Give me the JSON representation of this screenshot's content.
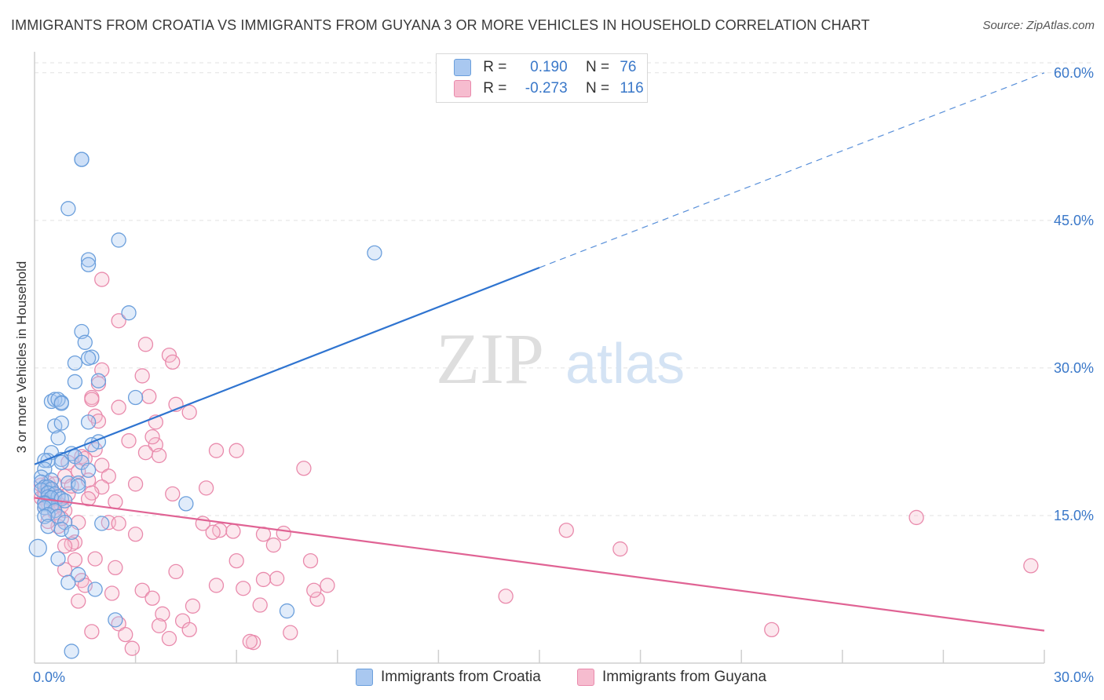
{
  "title": "IMMIGRANTS FROM CROATIA VS IMMIGRANTS FROM GUYANA 3 OR MORE VEHICLES IN HOUSEHOLD CORRELATION CHART",
  "source": "Source: ZipAtlas.com",
  "watermark": {
    "zip": "ZIP",
    "atlas": "atlas"
  },
  "legend": {
    "r_label": "R =",
    "n_label": "N =",
    "croatia": {
      "r": "0.190",
      "n": "76"
    },
    "guyana": {
      "r": "-0.273",
      "n": "116"
    }
  },
  "colors": {
    "croatia_fill": "#a9c8f0",
    "croatia_stroke": "#6b9fdc",
    "croatia_line": "#2f74d0",
    "guyana_fill": "#f6bccf",
    "guyana_stroke": "#e98aac",
    "guyana_line": "#e06394",
    "tick": "#3a78c9"
  },
  "chart_data": {
    "type": "scatter",
    "title": "IMMIGRANTS FROM CROATIA VS IMMIGRANTS FROM GUYANA 3 OR MORE VEHICLES IN HOUSEHOLD CORRELATION CHART",
    "xlabel": "",
    "ylabel": "3 or more Vehicles in Household",
    "xlim": [
      0,
      30
    ],
    "ylim": [
      0,
      61.5
    ],
    "x_tick_labels": [
      "0.0%",
      "30.0%"
    ],
    "y_ticks": [
      15,
      30,
      45,
      60
    ],
    "y_tick_labels": [
      "15.0%",
      "30.0%",
      "45.0%",
      "60.0%"
    ],
    "grid": true,
    "series": [
      {
        "name": "Immigrants from Croatia",
        "trend": {
          "x": [
            0,
            15
          ],
          "y": [
            20.2,
            40.2
          ],
          "dashed_to": [
            30,
            60.0
          ]
        },
        "points": [
          [
            1.4,
            51.2
          ],
          [
            1.4,
            51.2
          ],
          [
            1.0,
            46.2
          ],
          [
            2.5,
            43.0
          ],
          [
            1.6,
            41.0
          ],
          [
            1.6,
            40.5
          ],
          [
            2.8,
            35.6
          ],
          [
            1.4,
            33.7
          ],
          [
            1.5,
            32.6
          ],
          [
            1.7,
            31.1
          ],
          [
            1.6,
            31.0
          ],
          [
            1.2,
            30.5
          ],
          [
            1.9,
            28.7
          ],
          [
            1.2,
            28.6
          ],
          [
            3.0,
            27.0
          ],
          [
            0.5,
            26.6
          ],
          [
            0.8,
            26.5
          ],
          [
            0.6,
            26.8
          ],
          [
            0.7,
            26.8
          ],
          [
            0.8,
            26.4
          ],
          [
            1.6,
            24.5
          ],
          [
            0.6,
            24.1
          ],
          [
            0.8,
            24.4
          ],
          [
            0.7,
            22.9
          ],
          [
            1.9,
            22.5
          ],
          [
            1.7,
            22.2
          ],
          [
            1.1,
            21.3
          ],
          [
            0.5,
            21.4
          ],
          [
            1.2,
            21.0
          ],
          [
            0.8,
            20.7
          ],
          [
            1.4,
            20.4
          ],
          [
            0.8,
            20.4
          ],
          [
            0.4,
            20.6
          ],
          [
            0.3,
            20.6
          ],
          [
            0.3,
            19.7
          ],
          [
            1.6,
            19.6
          ],
          [
            0.2,
            18.9
          ],
          [
            0.5,
            18.6
          ],
          [
            0.2,
            18.4
          ],
          [
            1.0,
            18.3
          ],
          [
            1.3,
            18.3
          ],
          [
            1.3,
            18.0
          ],
          [
            0.3,
            17.9
          ],
          [
            0.4,
            17.9
          ],
          [
            0.5,
            17.7
          ],
          [
            0.2,
            17.6
          ],
          [
            0.4,
            17.3
          ],
          [
            0.6,
            17.2
          ],
          [
            0.4,
            16.9
          ],
          [
            0.7,
            16.9
          ],
          [
            0.5,
            16.8
          ],
          [
            0.8,
            16.7
          ],
          [
            0.9,
            16.5
          ],
          [
            0.3,
            16.3
          ],
          [
            0.3,
            16.2
          ],
          [
            0.5,
            16.0
          ],
          [
            0.3,
            15.8
          ],
          [
            0.6,
            15.5
          ],
          [
            0.4,
            15.1
          ],
          [
            0.3,
            14.9
          ],
          [
            0.7,
            14.9
          ],
          [
            0.9,
            14.3
          ],
          [
            0.4,
            13.9
          ],
          [
            2.0,
            14.2
          ],
          [
            0.8,
            13.6
          ],
          [
            1.1,
            13.3
          ],
          [
            4.5,
            16.2
          ],
          [
            0.1,
            11.7
          ],
          [
            0.7,
            10.6
          ],
          [
            1.3,
            9.0
          ],
          [
            1.0,
            8.2
          ],
          [
            1.8,
            7.5
          ],
          [
            2.4,
            4.4
          ],
          [
            7.5,
            5.3
          ],
          [
            1.1,
            1.2
          ],
          [
            10.1,
            41.7
          ]
        ]
      },
      {
        "name": "Immigrants from Guyana",
        "trend": {
          "x": [
            0,
            30
          ],
          "y": [
            16.8,
            3.3
          ]
        },
        "points": [
          [
            2.0,
            39.0
          ],
          [
            2.5,
            34.8
          ],
          [
            3.3,
            32.4
          ],
          [
            4.0,
            31.3
          ],
          [
            4.1,
            30.6
          ],
          [
            2.0,
            29.8
          ],
          [
            3.2,
            29.2
          ],
          [
            1.9,
            28.4
          ],
          [
            3.4,
            27.1
          ],
          [
            1.7,
            27.0
          ],
          [
            4.2,
            26.3
          ],
          [
            2.5,
            26.0
          ],
          [
            4.6,
            25.5
          ],
          [
            1.8,
            25.1
          ],
          [
            1.9,
            24.6
          ],
          [
            3.6,
            24.5
          ],
          [
            2.8,
            22.6
          ],
          [
            3.6,
            22.2
          ],
          [
            1.8,
            21.7
          ],
          [
            3.3,
            21.4
          ],
          [
            5.4,
            21.6
          ],
          [
            6.0,
            21.6
          ],
          [
            1.4,
            21.0
          ],
          [
            3.7,
            21.1
          ],
          [
            1.0,
            20.4
          ],
          [
            2.0,
            20.1
          ],
          [
            8.0,
            19.8
          ],
          [
            1.3,
            19.5
          ],
          [
            2.2,
            19.0
          ],
          [
            0.9,
            19.0
          ],
          [
            1.6,
            18.6
          ],
          [
            0.4,
            18.3
          ],
          [
            0.6,
            18.2
          ],
          [
            3.0,
            18.2
          ],
          [
            0.2,
            18.1
          ],
          [
            2.0,
            17.9
          ],
          [
            5.1,
            17.8
          ],
          [
            0.5,
            17.7
          ],
          [
            0.3,
            17.4
          ],
          [
            1.7,
            17.3
          ],
          [
            1.0,
            17.2
          ],
          [
            4.1,
            17.2
          ],
          [
            0.7,
            17.0
          ],
          [
            0.2,
            16.8
          ],
          [
            0.5,
            16.6
          ],
          [
            1.6,
            16.7
          ],
          [
            2.4,
            16.4
          ],
          [
            0.4,
            16.2
          ],
          [
            0.8,
            16.0
          ],
          [
            0.3,
            15.8
          ],
          [
            0.9,
            15.5
          ],
          [
            0.6,
            15.3
          ],
          [
            1.3,
            14.3
          ],
          [
            2.2,
            14.3
          ],
          [
            2.5,
            14.2
          ],
          [
            0.7,
            13.9
          ],
          [
            0.4,
            14.4
          ],
          [
            5.0,
            14.2
          ],
          [
            5.5,
            13.5
          ],
          [
            5.9,
            13.4
          ],
          [
            5.3,
            13.3
          ],
          [
            6.8,
            13.1
          ],
          [
            3.0,
            13.1
          ],
          [
            7.4,
            13.2
          ],
          [
            1.2,
            12.3
          ],
          [
            1.1,
            12.1
          ],
          [
            7.1,
            12.0
          ],
          [
            0.9,
            11.9
          ],
          [
            17.4,
            11.6
          ],
          [
            15.8,
            13.5
          ],
          [
            26.2,
            14.8
          ],
          [
            6.0,
            10.4
          ],
          [
            8.2,
            10.4
          ],
          [
            29.6,
            9.9
          ],
          [
            1.8,
            10.6
          ],
          [
            1.2,
            10.5
          ],
          [
            2.4,
            9.7
          ],
          [
            0.9,
            9.5
          ],
          [
            4.2,
            9.3
          ],
          [
            7.2,
            8.6
          ],
          [
            6.8,
            8.5
          ],
          [
            1.4,
            8.4
          ],
          [
            5.4,
            7.9
          ],
          [
            1.5,
            7.9
          ],
          [
            8.7,
            7.9
          ],
          [
            6.2,
            7.6
          ],
          [
            3.2,
            7.4
          ],
          [
            2.3,
            7.1
          ],
          [
            3.5,
            6.6
          ],
          [
            14.0,
            6.8
          ],
          [
            4.7,
            5.8
          ],
          [
            6.7,
            5.9
          ],
          [
            8.4,
            6.5
          ],
          [
            1.3,
            6.3
          ],
          [
            8.3,
            7.4
          ],
          [
            3.8,
            5.0
          ],
          [
            4.4,
            4.3
          ],
          [
            2.5,
            4.0
          ],
          [
            3.7,
            3.8
          ],
          [
            4.6,
            3.4
          ],
          [
            1.7,
            3.2
          ],
          [
            2.7,
            2.9
          ],
          [
            7.6,
            3.1
          ],
          [
            21.9,
            3.4
          ],
          [
            4.0,
            2.5
          ],
          [
            6.5,
            2.1
          ],
          [
            6.4,
            2.2
          ],
          [
            2.9,
            1.5
          ],
          [
            0.8,
            14.7
          ],
          [
            0.6,
            16.3
          ],
          [
            1.1,
            18.0
          ],
          [
            0.3,
            17.0
          ],
          [
            0.5,
            17.6
          ],
          [
            1.5,
            20.8
          ],
          [
            1.7,
            26.8
          ],
          [
            3.5,
            23.0
          ]
        ]
      }
    ]
  },
  "bottom_legend": {
    "croatia": "Immigrants from Croatia",
    "guyana": "Immigrants from Guyana"
  }
}
